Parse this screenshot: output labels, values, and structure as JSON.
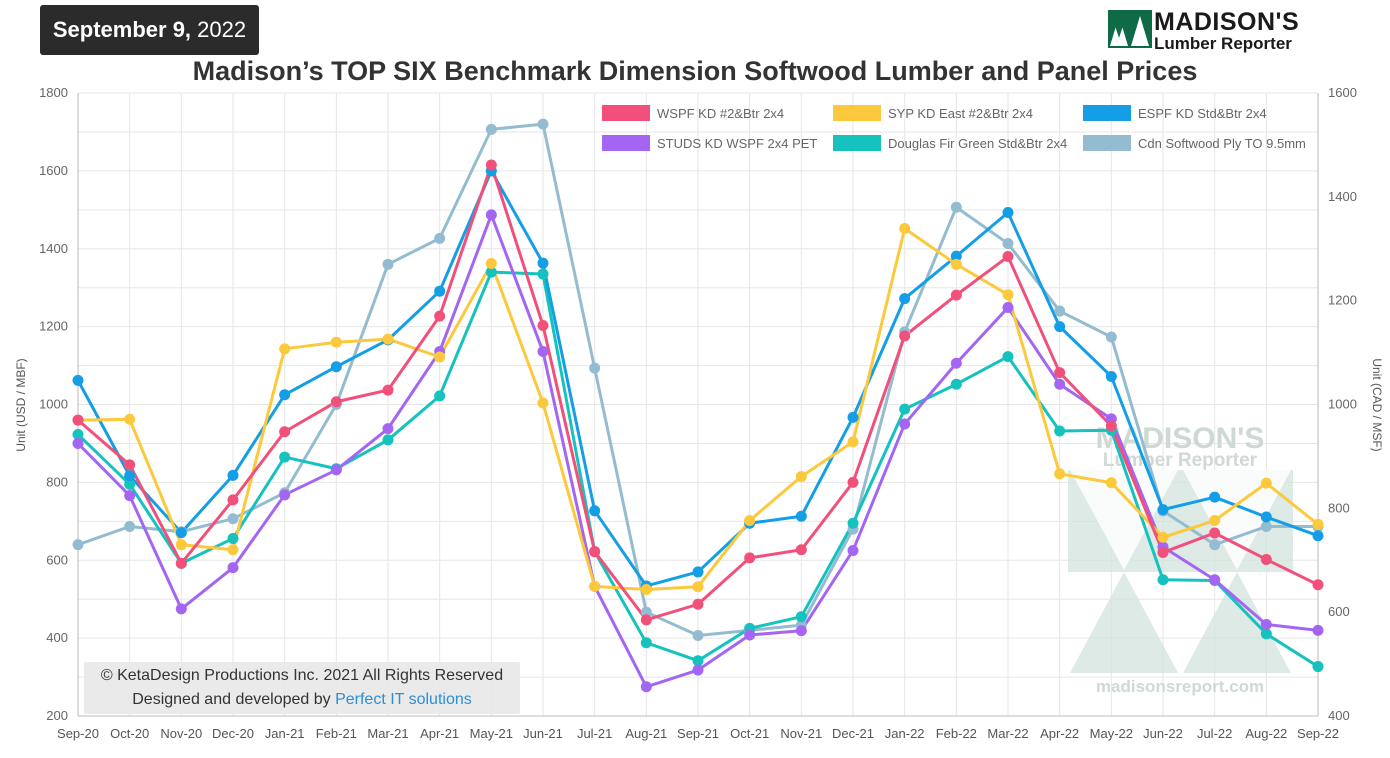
{
  "header": {
    "date_bold": "September 9,",
    "date_year": " 2022",
    "logo_line1": "MADISON'S",
    "logo_line2": "Lumber Reporter"
  },
  "watermark": {
    "line1": "MADISON'S",
    "line2": "Lumber Reporter",
    "url": "madisonsreport.com"
  },
  "copyright": {
    "line1": "© KetaDesign Productions Inc. 2021 All Rights Reserved",
    "line2_prefix": "Designed and developed by ",
    "line2_link": "Perfect IT solutions"
  },
  "chart_data": {
    "type": "line",
    "title": "Madison’s TOP SIX Benchmark Dimension Softwood Lumber and Panel Prices",
    "ylabel_left": "Unit (USD / MBF)",
    "ylabel_right": "Unit (CAD / MSF)",
    "ylim_left": [
      200,
      1800
    ],
    "yticks_left": [
      200,
      400,
      600,
      800,
      1000,
      1200,
      1400,
      1600,
      1800
    ],
    "ylim_right": [
      400,
      1600
    ],
    "yticks_right": [
      400,
      600,
      800,
      1000,
      1200,
      1400,
      1600
    ],
    "grid": true,
    "legend_position": "top-right",
    "categories": [
      "Sep-20",
      "Oct-20",
      "Nov-20",
      "Dec-20",
      "Jan-21",
      "Feb-21",
      "Mar-21",
      "Apr-21",
      "May-21",
      "Jun-21",
      "Jul-21",
      "Aug-21",
      "Sep-21",
      "Oct-21",
      "Nov-21",
      "Dec-21",
      "Jan-22",
      "Feb-22",
      "Mar-22",
      "Apr-22",
      "May-22",
      "Jun-22",
      "Jul-22",
      "Aug-22",
      "Sep-22"
    ],
    "series": [
      {
        "name": "WSPF KD #2&Btr 2x4",
        "color": "#f0507a",
        "axis": "left",
        "values": [
          960,
          845,
          592,
          755,
          930,
          1007,
          1037,
          1227,
          1615,
          1203,
          622,
          447,
          487,
          606,
          627,
          800,
          1176,
          1281,
          1380,
          1082,
          945,
          620,
          670,
          602,
          537
        ]
      },
      {
        "name": "SYP KD East #2&Btr 2x4",
        "color": "#fcc93c",
        "axis": "left",
        "values": [
          960,
          962,
          640,
          627,
          1143,
          1160,
          1168,
          1122,
          1362,
          1004,
          533,
          525,
          532,
          702,
          815,
          904,
          1452,
          1360,
          1282,
          822,
          799,
          659,
          702,
          798,
          692
        ]
      },
      {
        "name": "ESPF KD Std&Btr 2x4",
        "color": "#139ee6",
        "axis": "left",
        "values": [
          1062,
          817,
          671,
          818,
          1025,
          1097,
          1166,
          1291,
          1600,
          1363,
          727,
          534,
          570,
          695,
          713,
          967,
          1272,
          1381,
          1493,
          1200,
          1072,
          730,
          762,
          711,
          663
        ]
      },
      {
        "name": "STUDS KD WSPF 2x4 PET",
        "color": "#a466f2",
        "axis": "left",
        "values": [
          900,
          766,
          475,
          581,
          768,
          832,
          938,
          1136,
          1487,
          1136,
          533,
          275,
          318,
          408,
          419,
          625,
          950,
          1106,
          1249,
          1052,
          963,
          634,
          550,
          435,
          420
        ]
      },
      {
        "name": "Douglas Fir Green Std&Btr 2x4",
        "color": "#15c2be",
        "axis": "left",
        "values": [
          923,
          795,
          592,
          656,
          865,
          835,
          909,
          1022,
          1340,
          1335,
          622,
          388,
          342,
          425,
          455,
          695,
          988,
          1052,
          1123,
          932,
          934,
          550,
          548,
          411,
          327
        ]
      },
      {
        "name": "Cdn Softwood Ply TO 9.5mm",
        "color": "#94bcd0",
        "axis": "right",
        "values": [
          730,
          765,
          755,
          780,
          830,
          1000,
          1270,
          1320,
          1530,
          1540,
          1070,
          600,
          555,
          565,
          575,
          760,
          1140,
          1380,
          1310,
          1180,
          1130,
          795,
          730,
          765,
          765
        ]
      }
    ]
  }
}
